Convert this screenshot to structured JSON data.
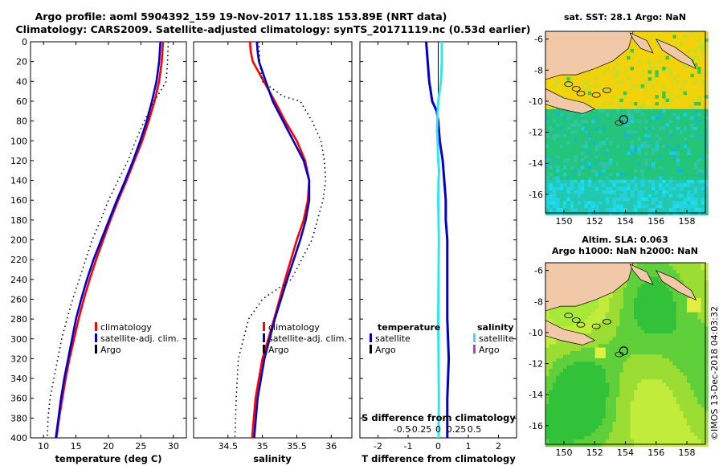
{
  "title": {
    "line1": "Argo profile: aoml 5904392_159 19-Nov-2017 11.18S 153.89E (NRT data)",
    "line2": "Climatology: CARS2009. Satellite-adjusted climatology: synTS_20171119.nc (0.53d earlier)"
  },
  "colors": {
    "climatology": "#ff0000",
    "satellite": "#0000cc",
    "argo": "#000000",
    "salinity_satellite": "#33e6ee",
    "salinity_argo": "#cc33cc",
    "land": "#f2c9a8"
  },
  "chart_data": [
    {
      "type": "line",
      "name": "temperature-profile",
      "xlabel": "temperature (deg C)",
      "ylabel": "",
      "xlim": [
        8,
        32
      ],
      "ylim": [
        400,
        0
      ],
      "xticks": [
        10,
        15,
        20,
        25,
        30
      ],
      "yticks": [
        0,
        20,
        40,
        60,
        80,
        100,
        120,
        140,
        160,
        180,
        200,
        220,
        240,
        260,
        280,
        300,
        320,
        340,
        360,
        380,
        400
      ],
      "legend": [
        "climatology",
        "satellite-adj. clim.",
        "Argo"
      ],
      "series": [
        {
          "name": "climatology",
          "color": "#ff0000",
          "style": "solid",
          "depth": [
            0,
            20,
            40,
            60,
            80,
            100,
            120,
            140,
            160,
            180,
            200,
            220,
            240,
            260,
            280,
            300,
            320,
            340,
            360,
            380,
            400
          ],
          "values": [
            28.4,
            28.2,
            27.8,
            27.1,
            26.2,
            25.2,
            24.0,
            22.8,
            21.5,
            20.3,
            19.2,
            18.1,
            17.1,
            16.2,
            15.4,
            14.7,
            14.0,
            13.4,
            12.9,
            12.4,
            12.0
          ]
        },
        {
          "name": "satellite-adj. clim.",
          "color": "#0000cc",
          "style": "solid",
          "depth": [
            0,
            20,
            40,
            60,
            80,
            100,
            120,
            140,
            160,
            180,
            200,
            220,
            240,
            260,
            280,
            300,
            320,
            340,
            360,
            380,
            400
          ],
          "values": [
            28.0,
            27.8,
            27.4,
            26.7,
            25.9,
            24.9,
            23.8,
            22.6,
            21.3,
            20.1,
            18.9,
            17.7,
            16.7,
            15.8,
            15.0,
            14.4,
            13.8,
            13.2,
            12.7,
            12.3,
            11.9
          ]
        },
        {
          "name": "Argo",
          "color": "#000000",
          "style": "dotted",
          "depth": [
            0,
            20,
            40,
            50,
            60,
            80,
            100,
            120,
            140,
            160,
            180,
            200,
            220,
            240,
            260,
            280,
            300,
            320,
            340,
            360,
            380,
            400
          ],
          "values": [
            29.2,
            29.1,
            28.9,
            28.0,
            27.0,
            25.5,
            24.2,
            23.0,
            21.5,
            20.0,
            18.8,
            17.5,
            16.5,
            15.5,
            14.5,
            13.6,
            12.8,
            12.2,
            11.6,
            11.0,
            10.7,
            10.6
          ]
        }
      ]
    },
    {
      "type": "line",
      "name": "salinity-profile",
      "xlabel": "salinity",
      "ylabel": "",
      "xlim": [
        34.0,
        36.3
      ],
      "ylim": [
        400,
        0
      ],
      "xticks": [
        34.5,
        35,
        35.5,
        36
      ],
      "legend": [
        "climatology",
        "satellite-adj. clim.",
        "Argo"
      ],
      "series": [
        {
          "name": "climatology",
          "color": "#ff0000",
          "style": "solid",
          "depth": [
            0,
            10,
            20,
            40,
            60,
            80,
            100,
            120,
            140,
            160,
            180,
            200,
            240,
            280,
            320,
            360,
            400
          ],
          "values": [
            34.82,
            34.83,
            34.86,
            35.02,
            35.18,
            35.33,
            35.5,
            35.62,
            35.68,
            35.66,
            35.6,
            35.5,
            35.33,
            35.17,
            35.0,
            34.9,
            34.85
          ]
        },
        {
          "name": "satellite-adj. clim.",
          "color": "#0000cc",
          "style": "solid",
          "depth": [
            0,
            10,
            20,
            40,
            60,
            80,
            100,
            120,
            140,
            160,
            180,
            200,
            240,
            280,
            320,
            360,
            400
          ],
          "values": [
            34.92,
            34.93,
            34.95,
            35.05,
            35.15,
            35.3,
            35.45,
            35.6,
            35.68,
            35.68,
            35.63,
            35.55,
            35.36,
            35.18,
            35.03,
            34.93,
            34.88
          ]
        },
        {
          "name": "Argo",
          "color": "#000000",
          "style": "dotted",
          "depth": [
            0,
            20,
            40,
            55,
            60,
            80,
            100,
            120,
            140,
            160,
            180,
            200,
            240,
            260,
            280,
            320,
            360,
            400
          ],
          "values": [
            34.95,
            34.96,
            35.0,
            35.3,
            35.55,
            35.72,
            35.85,
            35.9,
            35.92,
            35.88,
            35.8,
            35.72,
            35.42,
            35.0,
            34.8,
            34.65,
            34.62,
            34.6
          ]
        }
      ]
    },
    {
      "type": "line",
      "name": "difference-profile",
      "xlabel": "T difference from climatology",
      "xlabel_top": "S difference from climatology",
      "ylabel": "",
      "xlim": [
        -2.6,
        2.6
      ],
      "ylim": [
        400,
        0
      ],
      "xticks": [
        -2,
        -1,
        0,
        1,
        2
      ],
      "xticks_s": [
        -0.5,
        -0.25,
        0,
        0.25,
        0.5
      ],
      "legend_temperature": {
        "heading": "temperature",
        "items": [
          "satellite",
          "Argo"
        ]
      },
      "legend_salinity": {
        "heading": "salinity",
        "items": [
          "satellite",
          "Argo"
        ]
      },
      "series": [
        {
          "name": "temperature satellite",
          "color": "#0000cc",
          "style": "solid",
          "depth": [
            0,
            20,
            40,
            60,
            70,
            80,
            100,
            120,
            140,
            160,
            180,
            200,
            240,
            280,
            320,
            360,
            400
          ],
          "values": [
            -0.4,
            -0.35,
            -0.3,
            -0.2,
            -0.05,
            0.0,
            0.05,
            0.15,
            0.2,
            0.25,
            0.25,
            0.3,
            0.3,
            0.3,
            0.35,
            0.3,
            0.3
          ]
        },
        {
          "name": "salinity satellite",
          "color": "#33e6ee",
          "style": "solid",
          "depth": [
            0,
            20,
            40,
            60,
            80,
            90,
            100,
            120,
            130,
            140,
            160,
            200,
            240,
            280,
            320,
            360,
            400
          ],
          "values": [
            0.12,
            0.12,
            0.09,
            0.0,
            -0.03,
            -0.04,
            -0.02,
            0.0,
            0.03,
            0.01,
            0.0,
            0.02,
            0.01,
            0.0,
            0.01,
            0.02,
            0.01
          ]
        }
      ]
    },
    {
      "type": "heatmap",
      "name": "sst-map",
      "title": "sat. SST: 28.1 Argo: NaN",
      "xticks": [
        150,
        152,
        154,
        156,
        158
      ],
      "yticks": [
        -6,
        -8,
        -10,
        -12,
        -14,
        -16
      ],
      "xlim": [
        148.8,
        159.2
      ],
      "ylim": [
        -17.2,
        -5.5
      ],
      "argo_position": [
        153.89,
        -11.18
      ]
    },
    {
      "type": "heatmap",
      "name": "sla-map",
      "title_line1": "Altim. SLA: 0.063",
      "title_line2": "Argo h1000: NaN h2000: NaN",
      "xticks": [
        150,
        152,
        154,
        156,
        158
      ],
      "yticks": [
        -6,
        -8,
        -10,
        -12,
        -14,
        -16
      ],
      "xlim": [
        148.8,
        159.2
      ],
      "ylim": [
        -17.2,
        -5.5
      ],
      "argo_position": [
        153.89,
        -11.18
      ]
    }
  ],
  "watermark": "©IMOS 13-Dec-2018 04:03:32"
}
